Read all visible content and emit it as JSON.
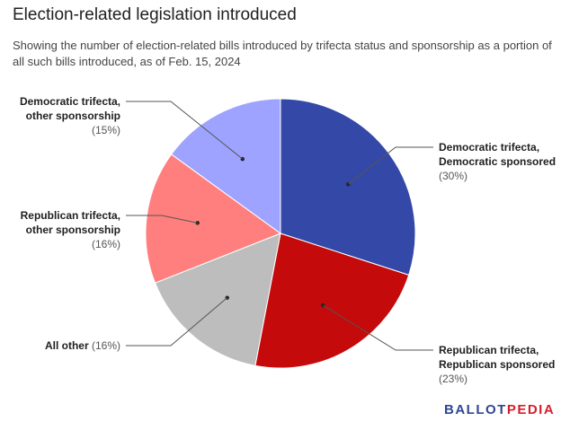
{
  "header": {
    "title": "Election-related legislation introduced",
    "subtitle": "Showing the number of election-related bills introduced by trifecta status and sponsorship as a portion of all such bills introduced, as of Feb. 15, 2024"
  },
  "brand": {
    "part1": "BALLOT",
    "part2": "PEDIA",
    "color1": "#2f4694",
    "color2": "#d41f2a"
  },
  "chart_data": {
    "type": "pie",
    "slices": [
      {
        "label_lines": [
          "Democratic trifecta,",
          "Democratic sponsored"
        ],
        "pct_label": "(30%)",
        "value": 30,
        "color": "#3448a8"
      },
      {
        "label_lines": [
          "Republican trifecta,",
          "Republican sponsored"
        ],
        "pct_label": "(23%)",
        "value": 23,
        "color": "#c40a0a"
      },
      {
        "label_lines": [
          "All other"
        ],
        "pct_label": "(16%)",
        "value": 16,
        "color": "#bdbdbd"
      },
      {
        "label_lines": [
          "Republican trifecta,",
          "other sponsorship"
        ],
        "pct_label": "(16%)",
        "value": 16,
        "color": "#ff7f7f"
      },
      {
        "label_lines": [
          "Democratic trifecta,",
          "other sponsorship"
        ],
        "pct_label": "(15%)",
        "value": 15,
        "color": "#9ea3ff"
      }
    ],
    "start_angle_deg": 0,
    "direction": "clockwise",
    "legend": "none"
  }
}
